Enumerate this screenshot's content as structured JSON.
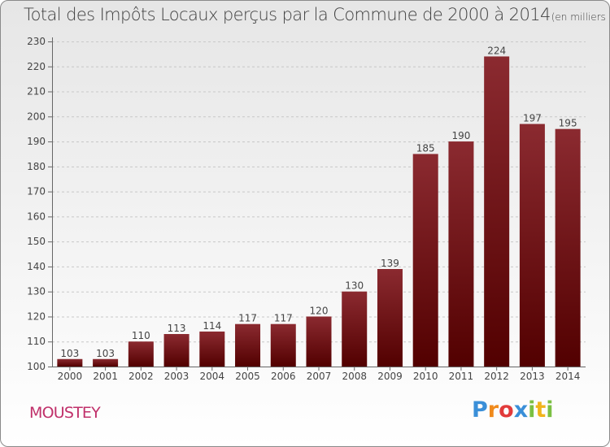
{
  "title": "Total des Impôts Locaux perçus par la Commune de 2000 à 2014",
  "unit": "(en milliers d'€)",
  "commune": "MOUSTEY",
  "logo": {
    "letters": [
      "P",
      "r",
      "o",
      "x",
      "i",
      "t",
      "i"
    ],
    "colors": [
      "#3a8fd8",
      "#f08a1c",
      "#e23b3b",
      "#3a8fd8",
      "#7bc043",
      "#f0b41c",
      "#7bc043"
    ]
  },
  "colors": {
    "bar_top": "#8b2a30",
    "bar_bottom": "#520000",
    "axis": "#666666"
  },
  "chart_data": {
    "type": "bar",
    "categories": [
      "2000",
      "2001",
      "2002",
      "2003",
      "2004",
      "2005",
      "2006",
      "2007",
      "2008",
      "2009",
      "2010",
      "2011",
      "2012",
      "2013",
      "2014"
    ],
    "values": [
      103,
      103,
      110,
      113,
      114,
      117,
      117,
      120,
      130,
      139,
      185,
      190,
      224,
      197,
      195
    ],
    "ylim": [
      100,
      230
    ],
    "yticks": [
      100,
      110,
      120,
      130,
      140,
      150,
      160,
      170,
      180,
      190,
      200,
      210,
      220,
      230
    ],
    "xlabel": "",
    "ylabel": ""
  }
}
